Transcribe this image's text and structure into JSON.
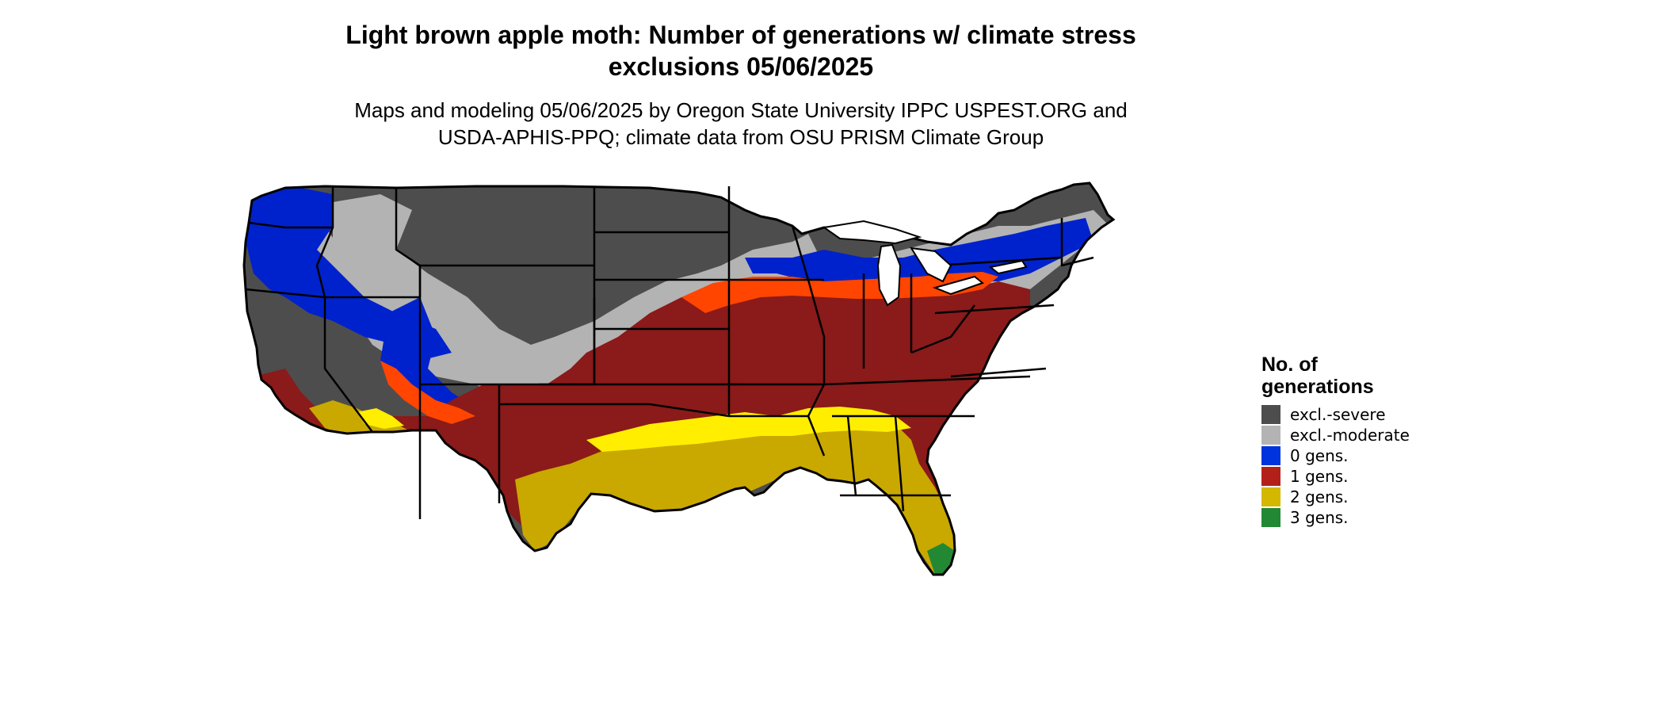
{
  "title_line1": "Light brown apple moth: Number of generations w/ climate stress",
  "title_line2": "exclusions 05/06/2025",
  "subtitle_line1": "Maps and modeling 05/06/2025 by Oregon State University IPPC USPEST.ORG and",
  "subtitle_line2": "USDA-APHIS-PPQ; climate data from OSU PRISM Climate Group",
  "legend": {
    "title_line1": "No. of",
    "title_line2": "generations",
    "items": [
      {
        "label": "excl.-severe",
        "color": "#4d4d4d"
      },
      {
        "label": "excl.-moderate",
        "color": "#b3b3b3"
      },
      {
        "label": "0 gens.",
        "color": "#0033dd"
      },
      {
        "label": "1 gens.",
        "color": "#b3201a"
      },
      {
        "label": "2 gens.",
        "color": "#d4b800"
      },
      {
        "label": "3 gens.",
        "color": "#228833"
      }
    ]
  },
  "palette": {
    "excl_severe": "#4d4d4d",
    "excl_moderate": "#b3b3b3",
    "gens_0": "#0022cc",
    "gens_1": "#8b1a1a",
    "gens_1_edge": "#ff4500",
    "gens_2": "#c9a800",
    "gens_2_bright": "#ffee00",
    "gens_3": "#228833"
  }
}
